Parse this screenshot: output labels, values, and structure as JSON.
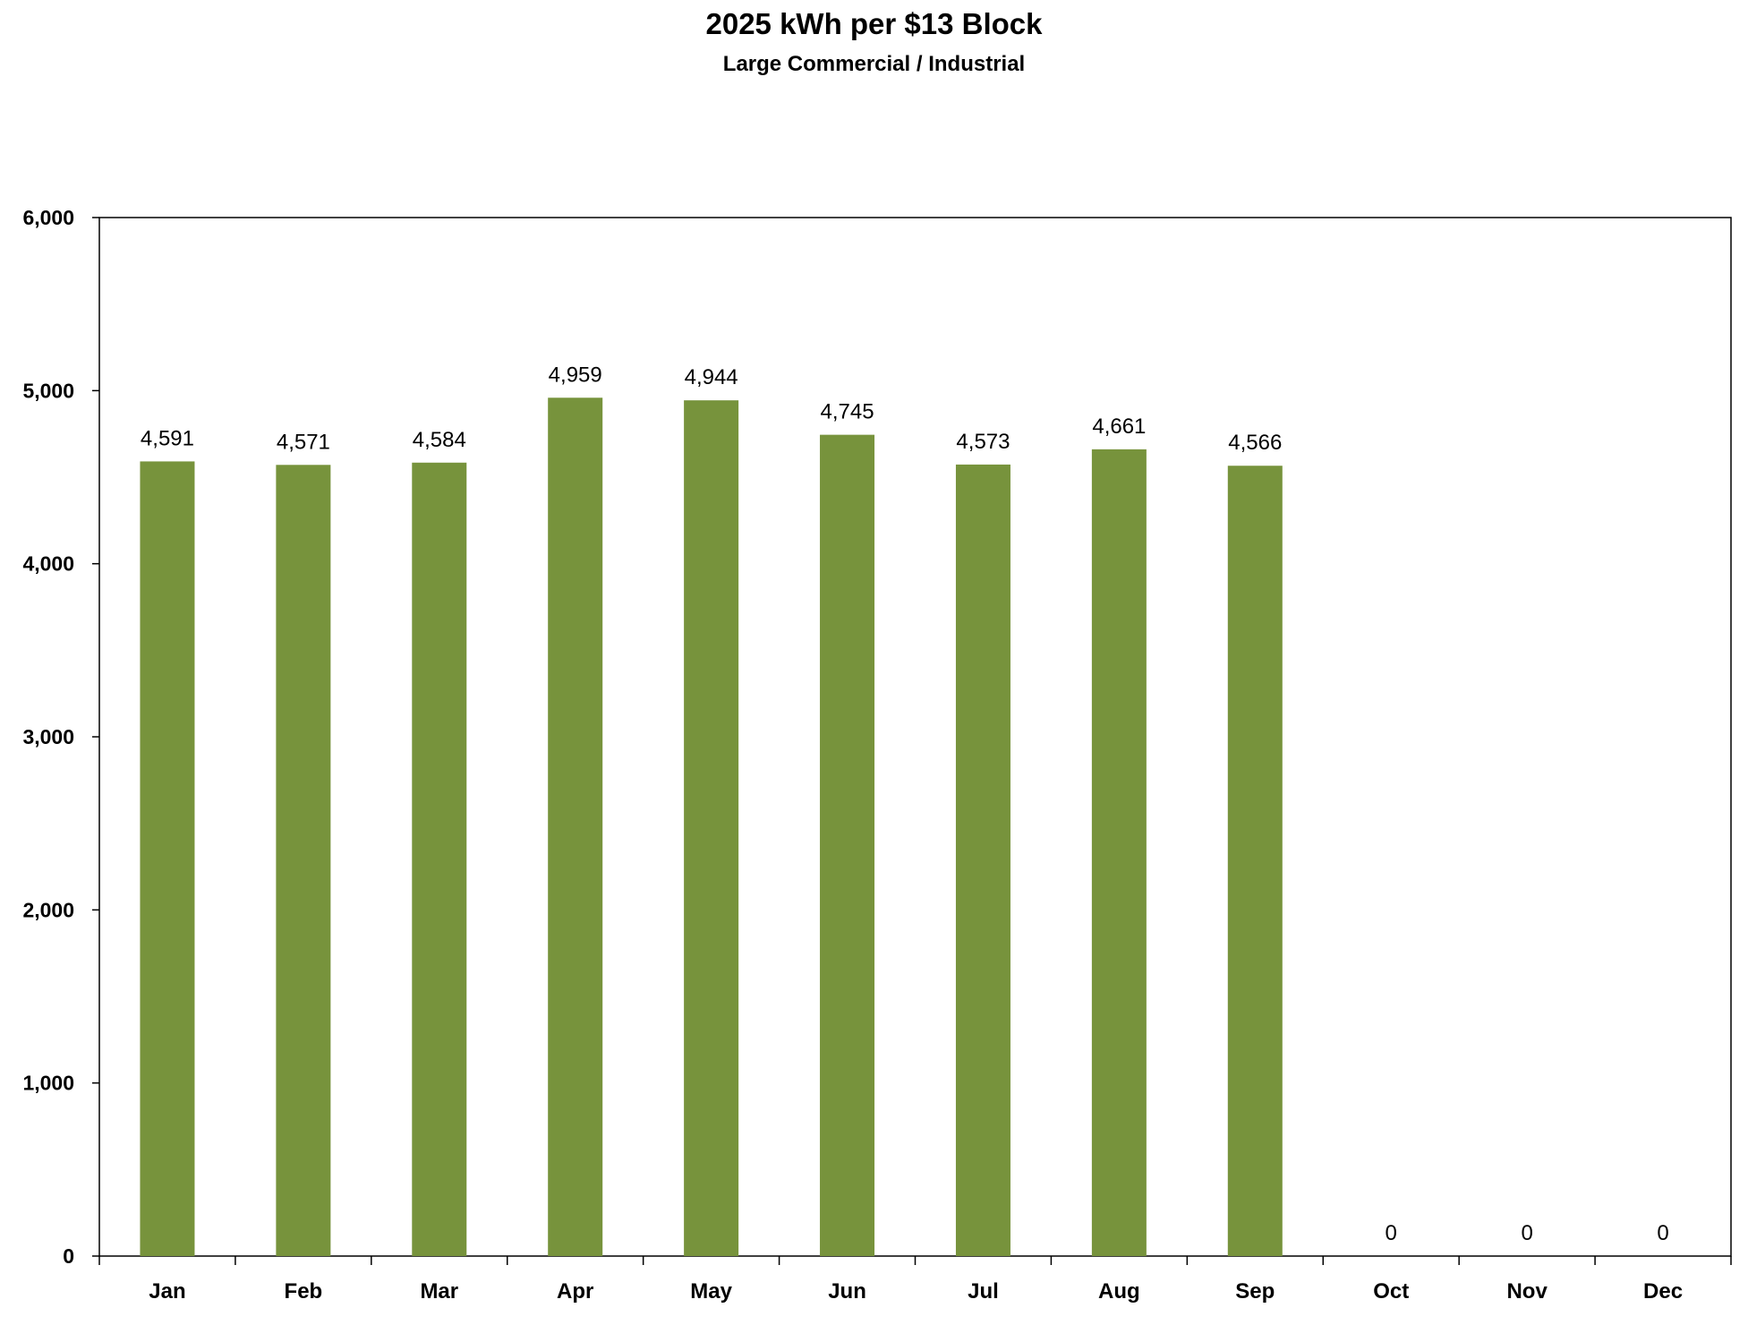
{
  "chart_data": {
    "type": "bar",
    "title": "2025 kWh per $13 Block",
    "subtitle": "Large Commercial / Industrial",
    "categories": [
      "Jan",
      "Feb",
      "Mar",
      "Apr",
      "May",
      "Jun",
      "Jul",
      "Aug",
      "Sep",
      "Oct",
      "Nov",
      "Dec"
    ],
    "values": [
      4591,
      4571,
      4584,
      4959,
      4944,
      4745,
      4573,
      4661,
      4566,
      0,
      0,
      0
    ],
    "data_labels": [
      "4,591",
      "4,571",
      "4,584",
      "4,959",
      "4,944",
      "4,745",
      "4,573",
      "4,661",
      "4,566",
      "0",
      "0",
      "0"
    ],
    "yticks": [
      0,
      1000,
      2000,
      3000,
      4000,
      5000,
      6000
    ],
    "ytick_labels": [
      "0",
      "1,000",
      "2,000",
      "3,000",
      "4,000",
      "5,000",
      "6,000"
    ],
    "ylim": [
      0,
      6000
    ],
    "grid": false,
    "legend": "none",
    "bar_color": "#77933C"
  }
}
